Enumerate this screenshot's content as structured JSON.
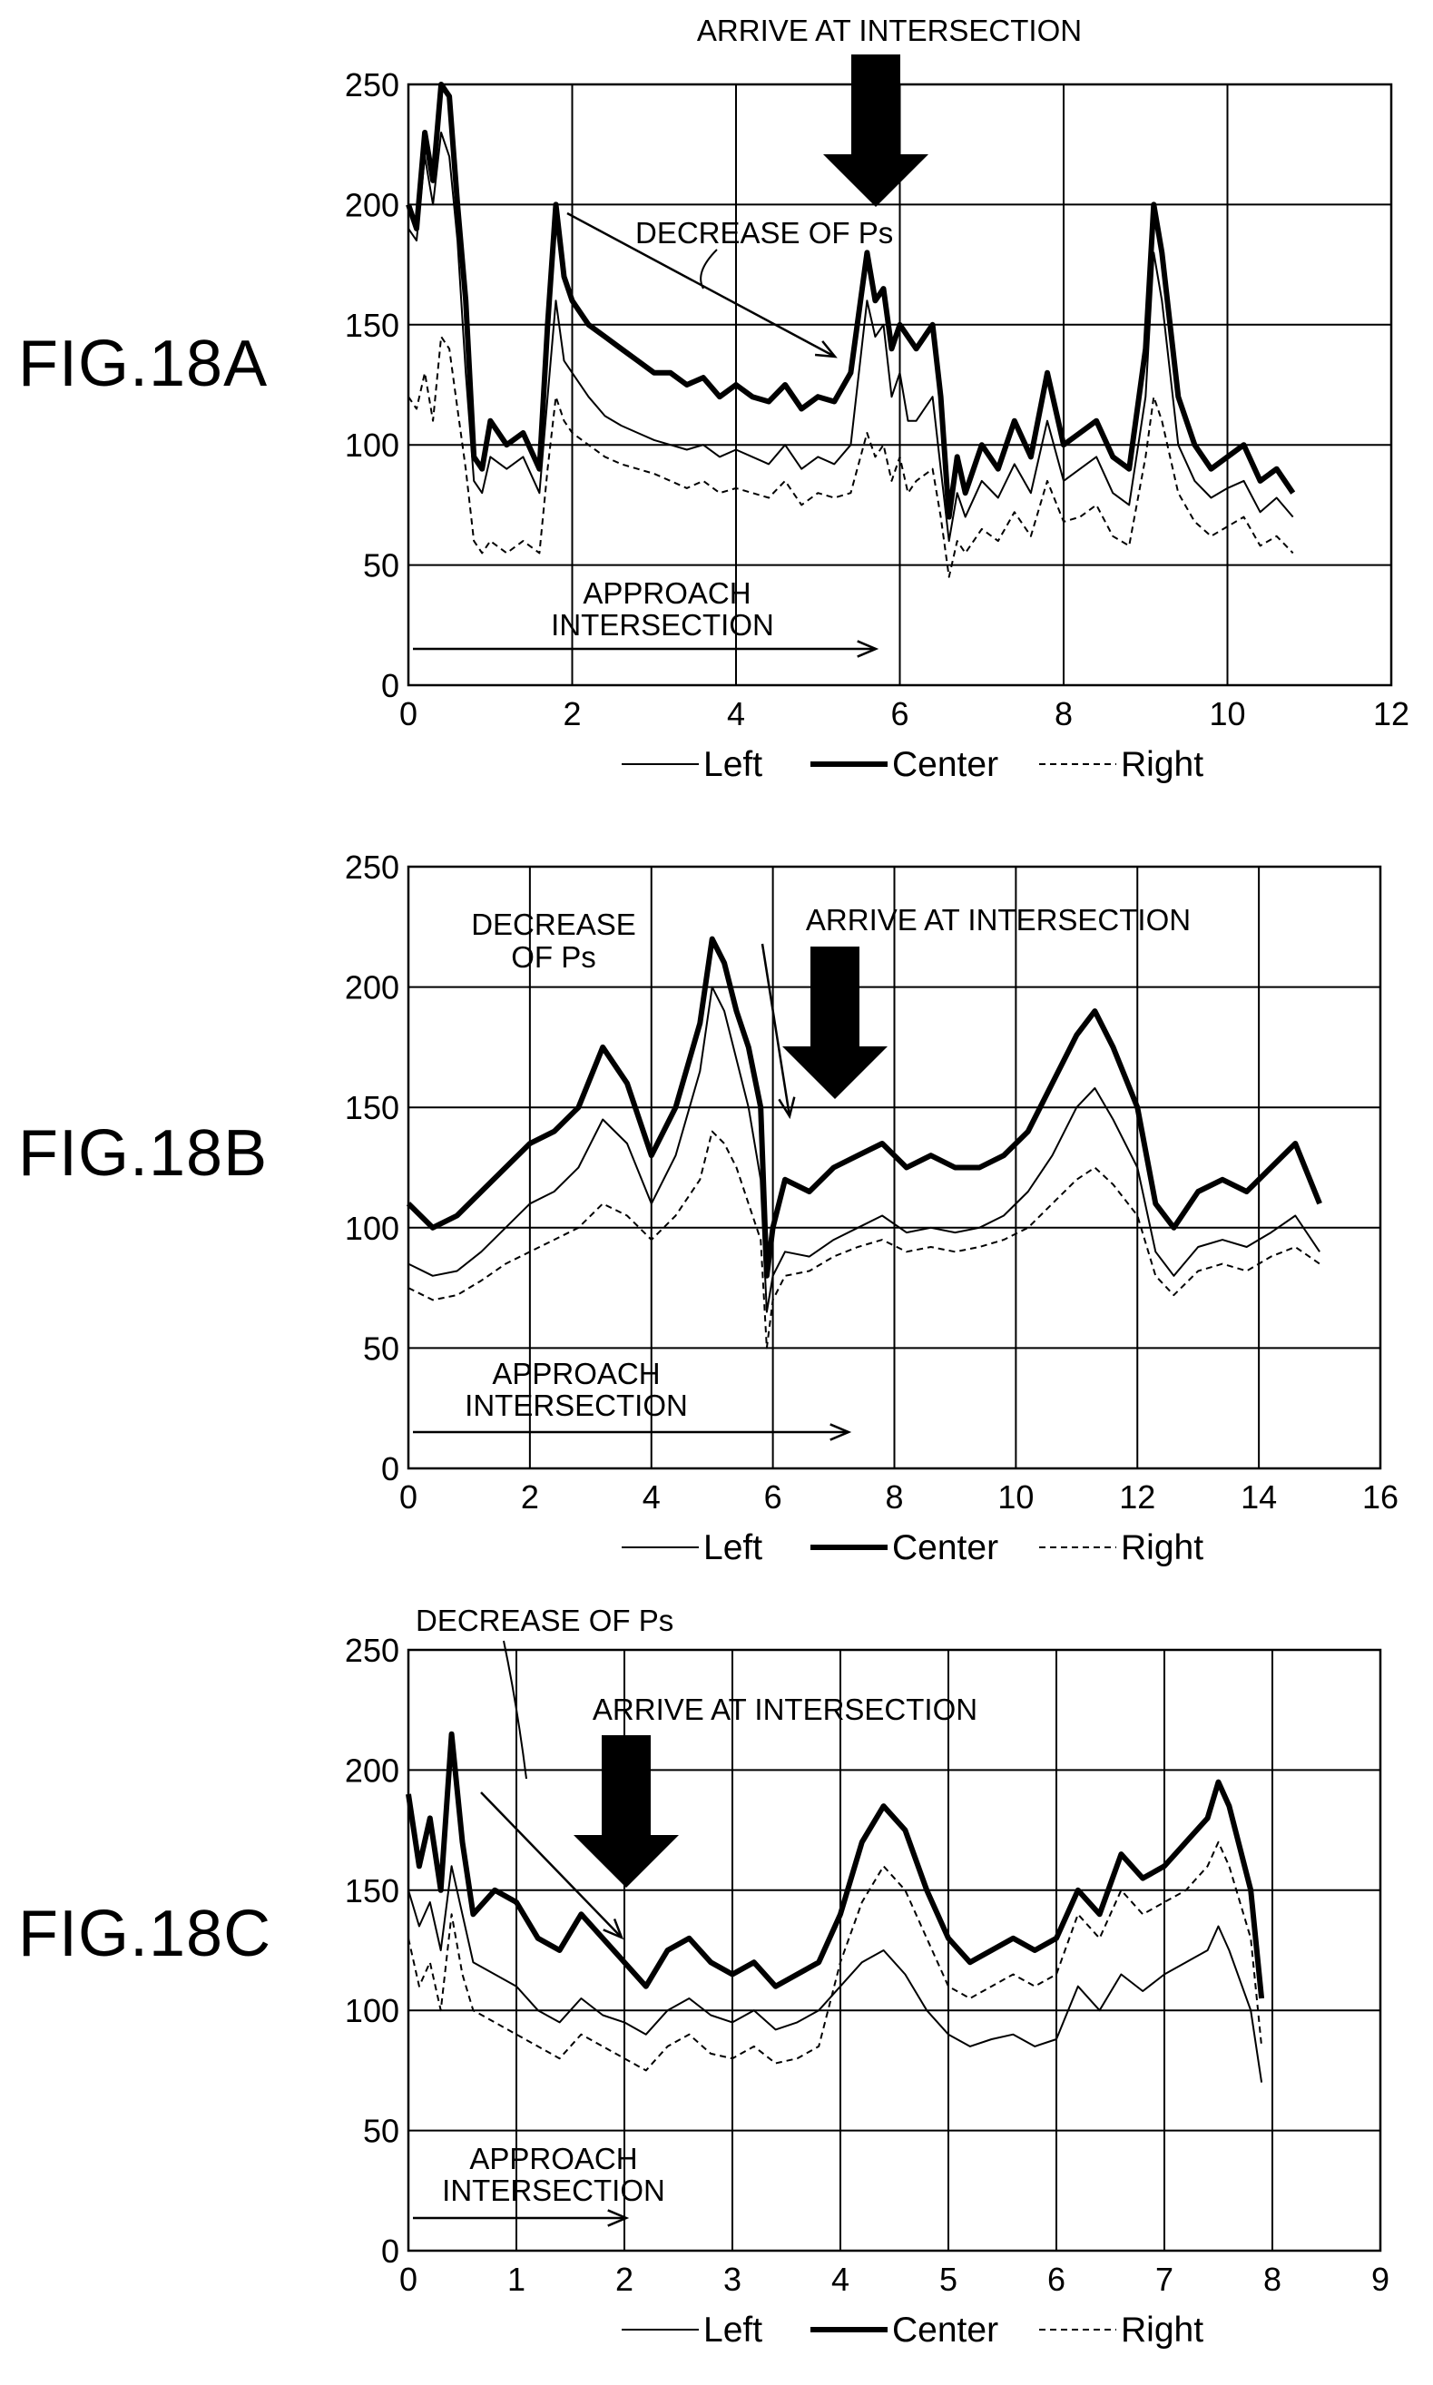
{
  "figures": [
    {
      "label": "FIG.18A"
    },
    {
      "label": "FIG.18B"
    },
    {
      "label": "FIG.18C"
    }
  ],
  "chart_data": [
    {
      "type": "line",
      "figure": "FIG.18A",
      "xlim": [
        0,
        12
      ],
      "ylim": [
        0,
        250
      ],
      "xticks": [
        "0",
        "2",
        "4",
        "6",
        "8",
        "10",
        "12"
      ],
      "yticks": [
        "0",
        "50",
        "100",
        "150",
        "200",
        "250"
      ],
      "grid": true,
      "legend_position": "bottom",
      "legend": [
        "Left",
        "Center",
        "Right"
      ],
      "annotations": {
        "arrive": "ARRIVE AT INTERSECTION",
        "decrease": "DECREASE OF Ps",
        "approach_line1": "APPROACH",
        "approach_line2": "INTERSECTION"
      },
      "series": [
        {
          "name": "Center",
          "style": "thick",
          "x": [
            0,
            0.1,
            0.2,
            0.3,
            0.4,
            0.5,
            0.6,
            0.7,
            0.8,
            0.9,
            1.0,
            1.2,
            1.4,
            1.6,
            1.7,
            1.8,
            1.9,
            2.0,
            2.2,
            2.4,
            2.6,
            2.8,
            3.0,
            3.2,
            3.4,
            3.6,
            3.8,
            4.0,
            4.2,
            4.4,
            4.6,
            4.8,
            5.0,
            5.2,
            5.4,
            5.6,
            5.7,
            5.8,
            5.9,
            6.0,
            6.1,
            6.2,
            6.4,
            6.5,
            6.6,
            6.7,
            6.8,
            7.0,
            7.2,
            7.4,
            7.6,
            7.8,
            8.0,
            8.2,
            8.4,
            8.6,
            8.8,
            9.0,
            9.1,
            9.2,
            9.3,
            9.4,
            9.6,
            9.8,
            10.0,
            10.2,
            10.4,
            10.6,
            10.8
          ],
          "y": [
            200,
            190,
            230,
            210,
            250,
            245,
            200,
            160,
            95,
            90,
            110,
            100,
            105,
            90,
            150,
            200,
            170,
            160,
            150,
            145,
            140,
            135,
            130,
            130,
            125,
            128,
            120,
            125,
            120,
            118,
            125,
            115,
            120,
            118,
            130,
            180,
            160,
            165,
            140,
            150,
            145,
            140,
            150,
            120,
            70,
            95,
            80,
            100,
            90,
            110,
            95,
            130,
            100,
            105,
            110,
            95,
            90,
            140,
            200,
            180,
            150,
            120,
            100,
            90,
            95,
            100,
            85,
            90,
            80
          ]
        },
        {
          "name": "Left",
          "style": "thin",
          "x": [
            0,
            0.1,
            0.2,
            0.3,
            0.4,
            0.5,
            0.6,
            0.7,
            0.8,
            0.9,
            1.0,
            1.2,
            1.4,
            1.6,
            1.7,
            1.8,
            1.9,
            2.0,
            2.2,
            2.4,
            2.6,
            2.8,
            3.0,
            3.2,
            3.4,
            3.6,
            3.8,
            4.0,
            4.2,
            4.4,
            4.6,
            4.8,
            5.0,
            5.2,
            5.4,
            5.6,
            5.7,
            5.8,
            5.9,
            6.0,
            6.1,
            6.2,
            6.4,
            6.5,
            6.6,
            6.7,
            6.8,
            7.0,
            7.2,
            7.4,
            7.6,
            7.8,
            8.0,
            8.2,
            8.4,
            8.6,
            8.8,
            9.0,
            9.1,
            9.2,
            9.3,
            9.4,
            9.6,
            9.8,
            10.0,
            10.2,
            10.4,
            10.6,
            10.8
          ],
          "y": [
            190,
            185,
            220,
            200,
            230,
            220,
            185,
            130,
            85,
            80,
            95,
            90,
            95,
            80,
            120,
            160,
            135,
            130,
            120,
            112,
            108,
            105,
            102,
            100,
            98,
            100,
            95,
            98,
            95,
            92,
            100,
            90,
            95,
            92,
            100,
            160,
            145,
            150,
            120,
            130,
            110,
            110,
            120,
            90,
            60,
            80,
            70,
            85,
            78,
            92,
            80,
            110,
            85,
            90,
            95,
            80,
            75,
            120,
            180,
            160,
            130,
            100,
            85,
            78,
            82,
            85,
            72,
            78,
            70
          ]
        },
        {
          "name": "Right",
          "style": "dashed",
          "x": [
            0,
            0.1,
            0.2,
            0.3,
            0.4,
            0.5,
            0.6,
            0.7,
            0.8,
            0.9,
            1.0,
            1.2,
            1.4,
            1.6,
            1.7,
            1.8,
            1.9,
            2.0,
            2.2,
            2.4,
            2.6,
            2.8,
            3.0,
            3.2,
            3.4,
            3.6,
            3.8,
            4.0,
            4.2,
            4.4,
            4.6,
            4.8,
            5.0,
            5.2,
            5.4,
            5.6,
            5.7,
            5.8,
            5.9,
            6.0,
            6.1,
            6.2,
            6.4,
            6.5,
            6.6,
            6.7,
            6.8,
            7.0,
            7.2,
            7.4,
            7.6,
            7.8,
            8.0,
            8.2,
            8.4,
            8.6,
            8.8,
            9.0,
            9.1,
            9.2,
            9.3,
            9.4,
            9.6,
            9.8,
            10.0,
            10.2,
            10.4,
            10.6,
            10.8
          ],
          "y": [
            120,
            115,
            130,
            110,
            145,
            140,
            115,
            90,
            60,
            55,
            60,
            55,
            60,
            55,
            90,
            120,
            110,
            105,
            100,
            95,
            92,
            90,
            88,
            85,
            82,
            85,
            80,
            82,
            80,
            78,
            85,
            75,
            80,
            78,
            80,
            105,
            95,
            100,
            85,
            95,
            80,
            85,
            90,
            70,
            45,
            60,
            55,
            65,
            60,
            72,
            62,
            85,
            68,
            70,
            75,
            62,
            58,
            95,
            120,
            110,
            95,
            80,
            68,
            62,
            66,
            70,
            58,
            62,
            55
          ]
        }
      ]
    },
    {
      "type": "line",
      "figure": "FIG.18B",
      "xlim": [
        0,
        16
      ],
      "ylim": [
        0,
        250
      ],
      "xticks": [
        "0",
        "2",
        "4",
        "6",
        "8",
        "10",
        "12",
        "14",
        "16"
      ],
      "yticks": [
        "0",
        "50",
        "100",
        "150",
        "200",
        "250"
      ],
      "grid": true,
      "legend_position": "bottom",
      "legend": [
        "Left",
        "Center",
        "Right"
      ],
      "annotations": {
        "arrive": "ARRIVE AT INTERSECTION",
        "decrease_line1": "DECREASE",
        "decrease_line2": "OF Ps",
        "approach_line1": "APPROACH",
        "approach_line2": "INTERSECTION"
      },
      "series": [
        {
          "name": "Center",
          "style": "thick",
          "x": [
            0,
            0.4,
            0.8,
            1.2,
            1.6,
            2.0,
            2.4,
            2.8,
            3.2,
            3.6,
            4.0,
            4.4,
            4.8,
            5.0,
            5.2,
            5.4,
            5.6,
            5.8,
            5.9,
            6.0,
            6.2,
            6.6,
            7.0,
            7.4,
            7.8,
            8.2,
            8.6,
            9.0,
            9.4,
            9.8,
            10.2,
            10.6,
            11.0,
            11.3,
            11.6,
            12.0,
            12.3,
            12.6,
            13.0,
            13.4,
            13.8,
            14.2,
            14.6,
            15.0
          ],
          "y": [
            110,
            100,
            105,
            115,
            125,
            135,
            140,
            150,
            175,
            160,
            130,
            150,
            185,
            220,
            210,
            190,
            175,
            150,
            80,
            100,
            120,
            115,
            125,
            130,
            135,
            125,
            130,
            125,
            125,
            130,
            140,
            160,
            180,
            190,
            175,
            150,
            110,
            100,
            115,
            120,
            115,
            125,
            135,
            110
          ]
        },
        {
          "name": "Left",
          "style": "thin",
          "x": [
            0,
            0.4,
            0.8,
            1.2,
            1.6,
            2.0,
            2.4,
            2.8,
            3.2,
            3.6,
            4.0,
            4.4,
            4.8,
            5.0,
            5.2,
            5.4,
            5.6,
            5.8,
            5.9,
            6.0,
            6.2,
            6.6,
            7.0,
            7.4,
            7.8,
            8.2,
            8.6,
            9.0,
            9.4,
            9.8,
            10.2,
            10.6,
            11.0,
            11.3,
            11.6,
            12.0,
            12.3,
            12.6,
            13.0,
            13.4,
            13.8,
            14.2,
            14.6,
            15.0
          ],
          "y": [
            85,
            80,
            82,
            90,
            100,
            110,
            115,
            125,
            145,
            135,
            110,
            130,
            165,
            200,
            190,
            170,
            150,
            120,
            65,
            80,
            90,
            88,
            95,
            100,
            105,
            98,
            100,
            98,
            100,
            105,
            115,
            130,
            150,
            158,
            145,
            125,
            90,
            80,
            92,
            95,
            92,
            98,
            105,
            90
          ]
        },
        {
          "name": "Right",
          "style": "dashed",
          "x": [
            0,
            0.4,
            0.8,
            1.2,
            1.6,
            2.0,
            2.4,
            2.8,
            3.2,
            3.6,
            4.0,
            4.4,
            4.8,
            5.0,
            5.2,
            5.4,
            5.6,
            5.8,
            5.9,
            6.0,
            6.2,
            6.6,
            7.0,
            7.4,
            7.8,
            8.2,
            8.6,
            9.0,
            9.4,
            9.8,
            10.2,
            10.6,
            11.0,
            11.3,
            11.6,
            12.0,
            12.3,
            12.6,
            13.0,
            13.4,
            13.8,
            14.2,
            14.6,
            15.0
          ],
          "y": [
            75,
            70,
            72,
            78,
            85,
            90,
            95,
            100,
            110,
            105,
            95,
            105,
            120,
            140,
            135,
            125,
            110,
            95,
            50,
            70,
            80,
            82,
            88,
            92,
            95,
            90,
            92,
            90,
            92,
            95,
            100,
            110,
            120,
            125,
            118,
            105,
            80,
            72,
            82,
            85,
            82,
            88,
            92,
            85
          ]
        }
      ]
    },
    {
      "type": "line",
      "figure": "FIG.18C",
      "xlim": [
        0,
        9
      ],
      "ylim": [
        0,
        250
      ],
      "xticks": [
        "0",
        "1",
        "2",
        "3",
        "4",
        "5",
        "6",
        "7",
        "8",
        "9"
      ],
      "yticks": [
        "0",
        "50",
        "100",
        "150",
        "200",
        "250"
      ],
      "grid": true,
      "legend_position": "bottom",
      "legend": [
        "Left",
        "Center",
        "Right"
      ],
      "annotations": {
        "arrive": "ARRIVE AT INTERSECTION",
        "decrease": "DECREASE OF Ps",
        "approach_line1": "APPROACH",
        "approach_line2": "INTERSECTION"
      },
      "series": [
        {
          "name": "Center",
          "style": "thick",
          "x": [
            0,
            0.1,
            0.2,
            0.3,
            0.4,
            0.5,
            0.6,
            0.8,
            1.0,
            1.2,
            1.4,
            1.6,
            1.8,
            2.0,
            2.2,
            2.4,
            2.6,
            2.8,
            3.0,
            3.2,
            3.4,
            3.6,
            3.8,
            4.0,
            4.2,
            4.4,
            4.6,
            4.8,
            5.0,
            5.2,
            5.4,
            5.6,
            5.8,
            6.0,
            6.2,
            6.4,
            6.6,
            6.8,
            7.0,
            7.2,
            7.4,
            7.5,
            7.6,
            7.8,
            7.9
          ],
          "y": [
            190,
            160,
            180,
            150,
            215,
            170,
            140,
            150,
            145,
            130,
            125,
            140,
            130,
            120,
            110,
            125,
            130,
            120,
            115,
            120,
            110,
            115,
            120,
            140,
            170,
            185,
            175,
            150,
            130,
            120,
            125,
            130,
            125,
            130,
            150,
            140,
            165,
            155,
            160,
            170,
            180,
            195,
            185,
            150,
            105
          ]
        },
        {
          "name": "Left",
          "style": "thin",
          "x": [
            0,
            0.1,
            0.2,
            0.3,
            0.4,
            0.5,
            0.6,
            0.8,
            1.0,
            1.2,
            1.4,
            1.6,
            1.8,
            2.0,
            2.2,
            2.4,
            2.6,
            2.8,
            3.0,
            3.2,
            3.4,
            3.6,
            3.8,
            4.0,
            4.2,
            4.4,
            4.6,
            4.8,
            5.0,
            5.2,
            5.4,
            5.6,
            5.8,
            6.0,
            6.2,
            6.4,
            6.6,
            6.8,
            7.0,
            7.2,
            7.4,
            7.5,
            7.6,
            7.8,
            7.9
          ],
          "y": [
            150,
            135,
            145,
            125,
            160,
            140,
            120,
            115,
            110,
            100,
            95,
            105,
            98,
            95,
            90,
            100,
            105,
            98,
            95,
            100,
            92,
            95,
            100,
            110,
            120,
            125,
            115,
            100,
            90,
            85,
            88,
            90,
            85,
            88,
            110,
            100,
            115,
            108,
            115,
            120,
            125,
            135,
            125,
            100,
            70
          ]
        },
        {
          "name": "Right",
          "style": "dashed",
          "x": [
            0,
            0.1,
            0.2,
            0.3,
            0.4,
            0.5,
            0.6,
            0.8,
            1.0,
            1.2,
            1.4,
            1.6,
            1.8,
            2.0,
            2.2,
            2.4,
            2.6,
            2.8,
            3.0,
            3.2,
            3.4,
            3.6,
            3.8,
            4.0,
            4.2,
            4.4,
            4.6,
            4.8,
            5.0,
            5.2,
            5.4,
            5.6,
            5.8,
            6.0,
            6.2,
            6.4,
            6.6,
            6.8,
            7.0,
            7.2,
            7.4,
            7.5,
            7.6,
            7.8,
            7.9
          ],
          "y": [
            130,
            110,
            120,
            100,
            140,
            115,
            100,
            95,
            90,
            85,
            80,
            90,
            85,
            80,
            75,
            85,
            90,
            82,
            80,
            85,
            78,
            80,
            85,
            120,
            145,
            160,
            150,
            130,
            110,
            105,
            110,
            115,
            110,
            115,
            140,
            130,
            150,
            140,
            145,
            150,
            160,
            170,
            160,
            130,
            85
          ]
        }
      ]
    }
  ]
}
